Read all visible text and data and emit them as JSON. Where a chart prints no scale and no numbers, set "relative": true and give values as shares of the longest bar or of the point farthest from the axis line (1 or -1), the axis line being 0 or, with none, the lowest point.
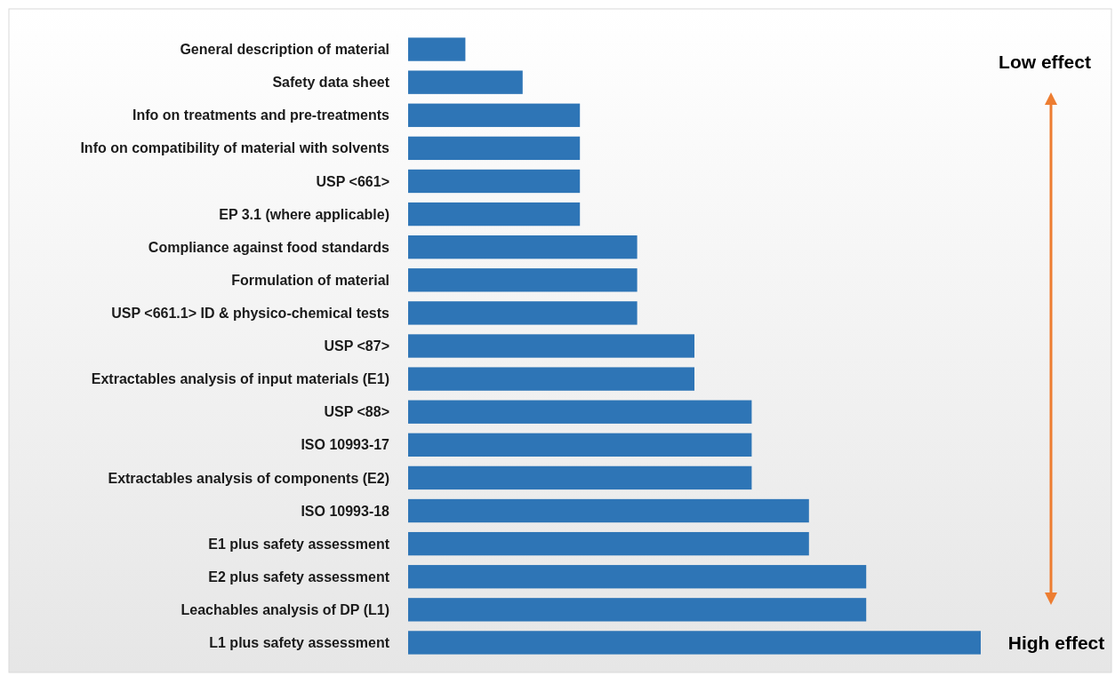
{
  "chart_data": {
    "type": "bar",
    "orientation": "horizontal",
    "relative": true,
    "categories": [
      "General description of material",
      "Safety data sheet",
      "Info on treatments and pre-treatments",
      "Info on compatibility of material with solvents",
      "USP <661>",
      "EP 3.1 (where applicable)",
      "Compliance against food standards",
      "Formulation of material",
      "USP <661.1> ID & physico-chemical tests",
      "USP <87>",
      "Extractables analysis of input materials (E1)",
      "USP <88>",
      "ISO 10993-17",
      "Extractables analysis of components (E2)",
      "ISO 10993-18",
      "E1 plus safety assessment",
      "E2 plus safety assessment",
      "Leachables analysis of DP (L1)",
      "L1 plus safety assessment"
    ],
    "values": [
      0.1,
      0.2,
      0.3,
      0.3,
      0.3,
      0.3,
      0.4,
      0.4,
      0.4,
      0.5,
      0.5,
      0.6,
      0.6,
      0.6,
      0.7,
      0.7,
      0.8,
      0.8,
      1.0
    ],
    "color": "#2e75b6",
    "annotations": [
      "Low effect",
      "High effect"
    ]
  }
}
